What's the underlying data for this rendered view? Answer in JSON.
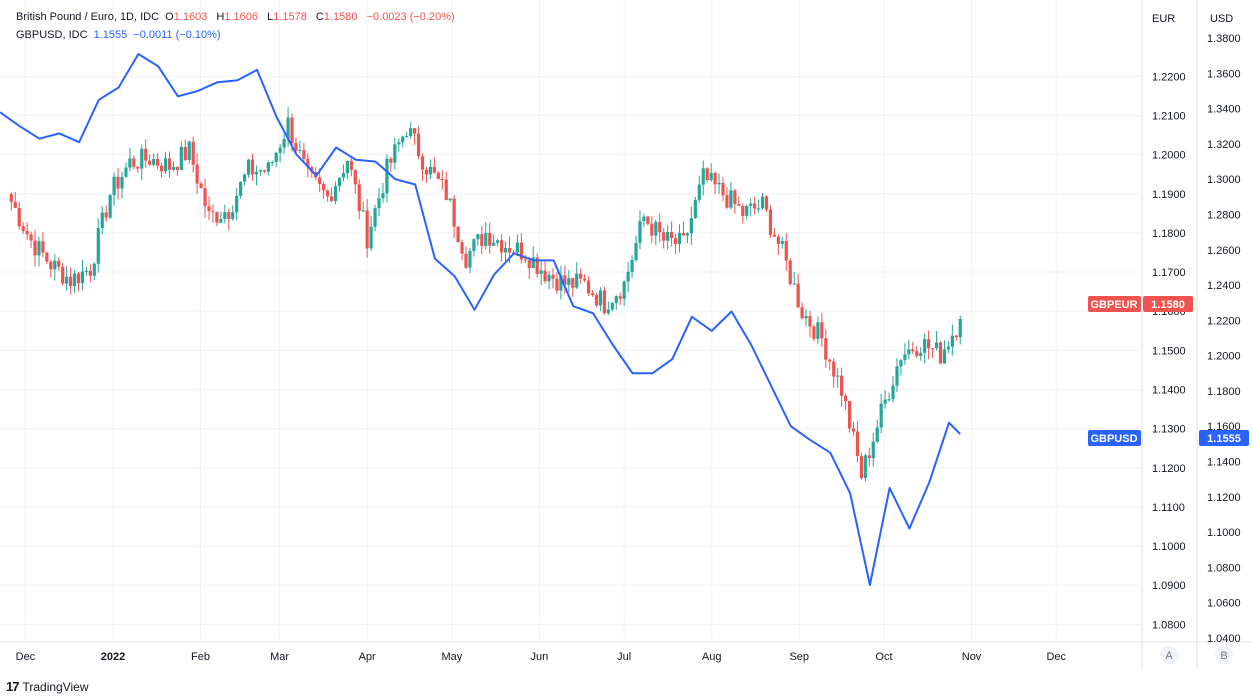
{
  "legend": {
    "gbpeur": {
      "name": "British Pound / Euro, 1D, IDC",
      "o_label": "O",
      "o": "1.1603",
      "h_label": "H",
      "h": "1.1606",
      "l_label": "L",
      "l": "1.1578",
      "c_label": "C",
      "c": "1.1580",
      "change": "−0.0023 (−0.20%)"
    },
    "gbpusd": {
      "name": "GBPUSD, IDC",
      "last": "1.1555",
      "change": "−0.0011 (−0.10%)"
    }
  },
  "colors": {
    "up": "#26a69a",
    "down": "#ef5350",
    "line": "#2962ff",
    "grid": "#f0f3fa",
    "axis_text": "#131722"
  },
  "axes": {
    "eur_title": "EUR",
    "usd_title": "USD",
    "left_ticks": [
      "1.2200",
      "1.2100",
      "1.2000",
      "1.1900",
      "1.1800",
      "1.1700",
      "1.1600",
      "1.1500",
      "1.1400",
      "1.1300",
      "1.1200",
      "1.1100",
      "1.1000",
      "1.0900",
      "1.0800"
    ],
    "right_ticks": [
      "1.3800",
      "1.3600",
      "1.3400",
      "1.3200",
      "1.3000",
      "1.2800",
      "1.2600",
      "1.2400",
      "1.2200",
      "1.2000",
      "1.1800",
      "1.1600",
      "1.1400",
      "1.1200",
      "1.1000",
      "1.0800",
      "1.0600",
      "1.0400"
    ],
    "time_labels": [
      "Dec",
      "2022",
      "Feb",
      "Mar",
      "Apr",
      "May",
      "Jun",
      "Jul",
      "Aug",
      "Sep",
      "Oct",
      "Nov",
      "Dec"
    ],
    "scale_buttons": [
      "A",
      "B"
    ]
  },
  "badges": {
    "gbpeur_label": "GBPEUR",
    "gbpeur_value": "1.1580",
    "gbpusd_label": "GBPUSD",
    "gbpusd_value": "1.1555"
  },
  "footer": {
    "logo": "17",
    "brand": "TradingView"
  },
  "chart_data": [
    {
      "type": "candlestick",
      "series_name": "British Pound / Euro",
      "axis": "left (EUR)",
      "ylim": [
        1.076,
        1.2395
      ],
      "x_range": [
        "2021-11-22",
        "2022-12-31"
      ],
      "candles": [
        {
          "date": "2021-11-26",
          "value": 1.188
        },
        {
          "date": "2021-12-03",
          "value": 1.178
        },
        {
          "date": "2021-12-10",
          "value": 1.172
        },
        {
          "date": "2021-12-17",
          "value": 1.168
        },
        {
          "date": "2021-12-24",
          "value": 1.171
        },
        {
          "date": "2021-12-31",
          "value": 1.19
        },
        {
          "date": "2022-01-07",
          "value": 1.198
        },
        {
          "date": "2022-01-14",
          "value": 1.199
        },
        {
          "date": "2022-01-21",
          "value": 1.197
        },
        {
          "date": "2022-01-28",
          "value": 1.201
        },
        {
          "date": "2022-02-04",
          "value": 1.184
        },
        {
          "date": "2022-02-11",
          "value": 1.186
        },
        {
          "date": "2022-02-18",
          "value": 1.196
        },
        {
          "date": "2022-02-25",
          "value": 1.196
        },
        {
          "date": "2022-03-04",
          "value": 1.208
        },
        {
          "date": "2022-03-11",
          "value": 1.194
        },
        {
          "date": "2022-03-18",
          "value": 1.189
        },
        {
          "date": "2022-03-25",
          "value": 1.199
        },
        {
          "date": "2022-04-01",
          "value": 1.179
        },
        {
          "date": "2022-04-08",
          "value": 1.196
        },
        {
          "date": "2022-04-15",
          "value": 1.207
        },
        {
          "date": "2022-04-22",
          "value": 1.197
        },
        {
          "date": "2022-04-29",
          "value": 1.19
        },
        {
          "date": "2022-05-06",
          "value": 1.174
        },
        {
          "date": "2022-05-13",
          "value": 1.18
        },
        {
          "date": "2022-05-20",
          "value": 1.177
        },
        {
          "date": "2022-05-27",
          "value": 1.175
        },
        {
          "date": "2022-06-03",
          "value": 1.17
        },
        {
          "date": "2022-06-10",
          "value": 1.167
        },
        {
          "date": "2022-06-17",
          "value": 1.167
        },
        {
          "date": "2022-06-24",
          "value": 1.162
        },
        {
          "date": "2022-07-01",
          "value": 1.167
        },
        {
          "date": "2022-07-08",
          "value": 1.184
        },
        {
          "date": "2022-07-15",
          "value": 1.178
        },
        {
          "date": "2022-07-22",
          "value": 1.177
        },
        {
          "date": "2022-07-29",
          "value": 1.194
        },
        {
          "date": "2022-08-05",
          "value": 1.19
        },
        {
          "date": "2022-08-12",
          "value": 1.185
        },
        {
          "date": "2022-08-19",
          "value": 1.187
        },
        {
          "date": "2022-08-26",
          "value": 1.175
        },
        {
          "date": "2022-09-02",
          "value": 1.16
        },
        {
          "date": "2022-09-09",
          "value": 1.153
        },
        {
          "date": "2022-09-16",
          "value": 1.14
        },
        {
          "date": "2022-09-23",
          "value": 1.118
        },
        {
          "date": "2022-09-30",
          "value": 1.134
        },
        {
          "date": "2022-10-07",
          "value": 1.149
        },
        {
          "date": "2022-10-14",
          "value": 1.152
        },
        {
          "date": "2022-10-21",
          "value": 1.149
        },
        {
          "date": "2022-10-28",
          "value": 1.158
        }
      ],
      "last_value": 1.158
    },
    {
      "type": "line",
      "series_name": "GBPUSD",
      "axis": "right (USD)",
      "ylim": [
        1.0388,
        1.4016
      ],
      "points": [
        {
          "date": "2021-11-22",
          "value": 1.338
        },
        {
          "date": "2021-11-29",
          "value": 1.33
        },
        {
          "date": "2021-12-06",
          "value": 1.323
        },
        {
          "date": "2021-12-13",
          "value": 1.326
        },
        {
          "date": "2021-12-20",
          "value": 1.321
        },
        {
          "date": "2021-12-27",
          "value": 1.345
        },
        {
          "date": "2022-01-03",
          "value": 1.352
        },
        {
          "date": "2022-01-10",
          "value": 1.371
        },
        {
          "date": "2022-01-17",
          "value": 1.364
        },
        {
          "date": "2022-01-24",
          "value": 1.347
        },
        {
          "date": "2022-01-31",
          "value": 1.35
        },
        {
          "date": "2022-02-07",
          "value": 1.355
        },
        {
          "date": "2022-02-14",
          "value": 1.356
        },
        {
          "date": "2022-02-21",
          "value": 1.362
        },
        {
          "date": "2022-02-28",
          "value": 1.335
        },
        {
          "date": "2022-03-07",
          "value": 1.314
        },
        {
          "date": "2022-03-14",
          "value": 1.302
        },
        {
          "date": "2022-03-21",
          "value": 1.318
        },
        {
          "date": "2022-03-28",
          "value": 1.311
        },
        {
          "date": "2022-04-04",
          "value": 1.31
        },
        {
          "date": "2022-04-11",
          "value": 1.3
        },
        {
          "date": "2022-04-18",
          "value": 1.297
        },
        {
          "date": "2022-04-25",
          "value": 1.255
        },
        {
          "date": "2022-05-02",
          "value": 1.245
        },
        {
          "date": "2022-05-09",
          "value": 1.226
        },
        {
          "date": "2022-05-16",
          "value": 1.246
        },
        {
          "date": "2022-05-23",
          "value": 1.258
        },
        {
          "date": "2022-05-30",
          "value": 1.254
        },
        {
          "date": "2022-06-06",
          "value": 1.254
        },
        {
          "date": "2022-06-13",
          "value": 1.228
        },
        {
          "date": "2022-06-20",
          "value": 1.224
        },
        {
          "date": "2022-06-27",
          "value": 1.206
        },
        {
          "date": "2022-07-04",
          "value": 1.19
        },
        {
          "date": "2022-07-11",
          "value": 1.19
        },
        {
          "date": "2022-07-18",
          "value": 1.198
        },
        {
          "date": "2022-07-25",
          "value": 1.222
        },
        {
          "date": "2022-08-01",
          "value": 1.214
        },
        {
          "date": "2022-08-08",
          "value": 1.225
        },
        {
          "date": "2022-08-15",
          "value": 1.206
        },
        {
          "date": "2022-08-22",
          "value": 1.183
        },
        {
          "date": "2022-08-29",
          "value": 1.16
        },
        {
          "date": "2022-09-05",
          "value": 1.152
        },
        {
          "date": "2022-09-12",
          "value": 1.145
        },
        {
          "date": "2022-09-19",
          "value": 1.122
        },
        {
          "date": "2022-09-26",
          "value": 1.07
        },
        {
          "date": "2022-10-03",
          "value": 1.125
        },
        {
          "date": "2022-10-10",
          "value": 1.102
        },
        {
          "date": "2022-10-17",
          "value": 1.128
        },
        {
          "date": "2022-10-24",
          "value": 1.162
        },
        {
          "date": "2022-10-28",
          "value": 1.1555
        }
      ],
      "last_value": 1.1555
    }
  ]
}
